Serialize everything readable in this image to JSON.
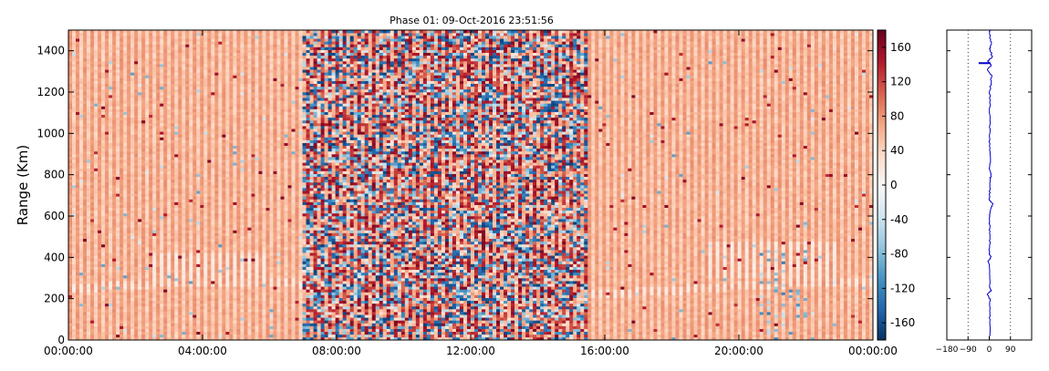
{
  "chart_data": [
    {
      "type": "heatmap",
      "title": "Phase 01: 09-Oct-2016 23:51:56",
      "xlabel": "",
      "ylabel": "Range (Km)",
      "xlim": [
        "00:00:00",
        "00:00:00"
      ],
      "ylim": [
        0,
        1500
      ],
      "x_ticks": [
        "00:00:00",
        "04:00:00",
        "08:00:00",
        "12:00:00",
        "16:00:00",
        "20:00:00",
        "00:00:00"
      ],
      "y_ticks": [
        0,
        200,
        400,
        600,
        800,
        1000,
        1200,
        1400
      ],
      "colorbar": {
        "colormap": "RdBu_r",
        "range": [
          -180,
          180
        ],
        "ticks": [
          -160,
          -120,
          -80,
          -40,
          0,
          40,
          80,
          120,
          160
        ]
      },
      "time_regions_hours": {
        "quiet_early": [
          0,
          7
        ],
        "noisy": [
          7,
          15.5
        ],
        "quiet_late": [
          15.5,
          24
        ]
      },
      "grid": false
    },
    {
      "type": "line",
      "title": "",
      "xlabel": "",
      "ylabel": "",
      "xlim": [
        -180,
        180
      ],
      "ylim": [
        0,
        1500
      ],
      "x_ticks": [
        -180,
        -90,
        0,
        90
      ],
      "x_tick_labels": [
        "−180",
        "−90",
        "0",
        "90"
      ],
      "reference_lines_x": [
        -90,
        90
      ],
      "color": "#0000cc",
      "profile": [
        [
          0,
          2
        ],
        [
          50,
          3
        ],
        [
          100,
          1
        ],
        [
          150,
          4
        ],
        [
          200,
          2
        ],
        [
          220,
          -8
        ],
        [
          240,
          8
        ],
        [
          260,
          1
        ],
        [
          300,
          3
        ],
        [
          360,
          2
        ],
        [
          380,
          -6
        ],
        [
          400,
          7
        ],
        [
          420,
          0
        ],
        [
          460,
          2
        ],
        [
          500,
          3
        ],
        [
          540,
          1
        ],
        [
          580,
          2
        ],
        [
          620,
          3
        ],
        [
          640,
          8
        ],
        [
          660,
          14
        ],
        [
          680,
          0
        ],
        [
          720,
          2
        ],
        [
          780,
          3
        ],
        [
          800,
          9
        ],
        [
          820,
          2
        ],
        [
          880,
          3
        ],
        [
          940,
          1
        ],
        [
          1000,
          2
        ],
        [
          1060,
          3
        ],
        [
          1100,
          2
        ],
        [
          1160,
          4
        ],
        [
          1200,
          2
        ],
        [
          1240,
          6
        ],
        [
          1280,
          10
        ],
        [
          1310,
          -8
        ],
        [
          1330,
          9
        ],
        [
          1350,
          -5
        ],
        [
          1370,
          12
        ],
        [
          1390,
          8
        ],
        [
          1410,
          3
        ],
        [
          1440,
          8
        ],
        [
          1460,
          3
        ],
        [
          1480,
          2
        ],
        [
          1500,
          2
        ]
      ],
      "spike": {
        "range": 1340,
        "from": -45,
        "to": 5
      }
    }
  ]
}
